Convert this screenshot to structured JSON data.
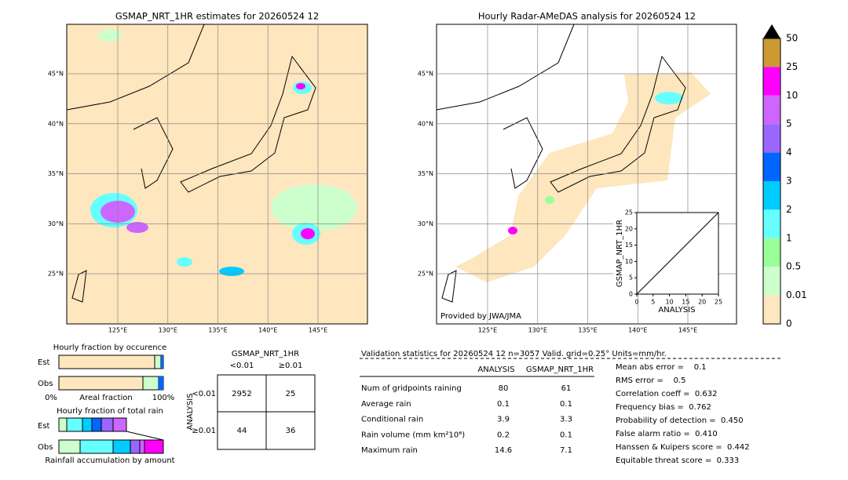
{
  "maps": [
    {
      "title": "GSMAP_NRT_1HR estimates for 20260524 12",
      "lat_labels": [
        "45°N",
        "40°N",
        "35°N",
        "30°N",
        "25°N"
      ],
      "lon_labels": [
        "125°E",
        "130°E",
        "135°E",
        "140°E",
        "145°E"
      ]
    },
    {
      "title": "Hourly Radar-AMeDAS analysis for 20260524 12",
      "lat_labels": [
        "45°N",
        "40°N",
        "35°N",
        "30°N",
        "25°N"
      ],
      "lon_labels": [
        "125°E",
        "130°E",
        "135°E",
        "140°E",
        "145°E"
      ],
      "credit": "Provided by JWA/JMA"
    }
  ],
  "colorbar": {
    "labels": [
      "50",
      "25",
      "10",
      "5",
      "4",
      "3",
      "2",
      "1",
      "0.5",
      "0.01",
      "0"
    ]
  },
  "scatter": {
    "xlabel": "ANALYSIS",
    "ylabel": "GSMAP_NRT_1HR",
    "xlim": [
      0,
      25
    ],
    "ylim": [
      0,
      25
    ],
    "xticks": [
      0,
      5,
      10,
      15,
      20,
      25
    ],
    "yticks": [
      0,
      5,
      10,
      15,
      20,
      25
    ]
  },
  "occurrence": {
    "title": "Hourly fraction by occurence",
    "rows": [
      "Est",
      "Obs"
    ],
    "axis_labels": [
      "0%",
      "Areal fraction",
      "100%"
    ]
  },
  "total_rain": {
    "title": "Hourly fraction of total rain",
    "rows": [
      "Est",
      "Obs"
    ],
    "footer": "Rainfall accumulation by amount"
  },
  "contingency": {
    "title": "GSMAP_NRT_1HR",
    "col_headers": [
      "<0.01",
      "≥0.01"
    ],
    "row_axis": "ANALYSIS",
    "row_headers": [
      "<0.01",
      "≥0.01"
    ],
    "cells": [
      [
        2952,
        25
      ],
      [
        44,
        36
      ]
    ]
  },
  "validation": {
    "header": "Validation statistics for 20260524 12  n=3057 Valid. grid=0.25° Units=mm/hr.",
    "columns": [
      "ANALYSIS",
      "GSMAP_NRT_1HR"
    ],
    "rows": [
      {
        "label": "Num of gridpoints raining",
        "values": [
          80,
          61
        ]
      },
      {
        "label": "Average rain",
        "values": [
          0.1,
          0.1
        ]
      },
      {
        "label": "Conditional rain",
        "values": [
          3.9,
          3.3
        ]
      },
      {
        "label": "Rain volume (mm km²10⁶)",
        "values": [
          0.2,
          0.1
        ]
      },
      {
        "label": "Maximum rain",
        "values": [
          14.6,
          7.1
        ]
      }
    ],
    "scores": [
      "Mean abs error =    0.1",
      "RMS error =    0.5",
      "Correlation coeff =  0.632",
      "Frequency bias =  0.762",
      "Probability of detection =  0.450",
      "False alarm ratio =  0.410",
      "Hanssen & Kuipers score =  0.442",
      "Equitable threat score =  0.333"
    ]
  }
}
